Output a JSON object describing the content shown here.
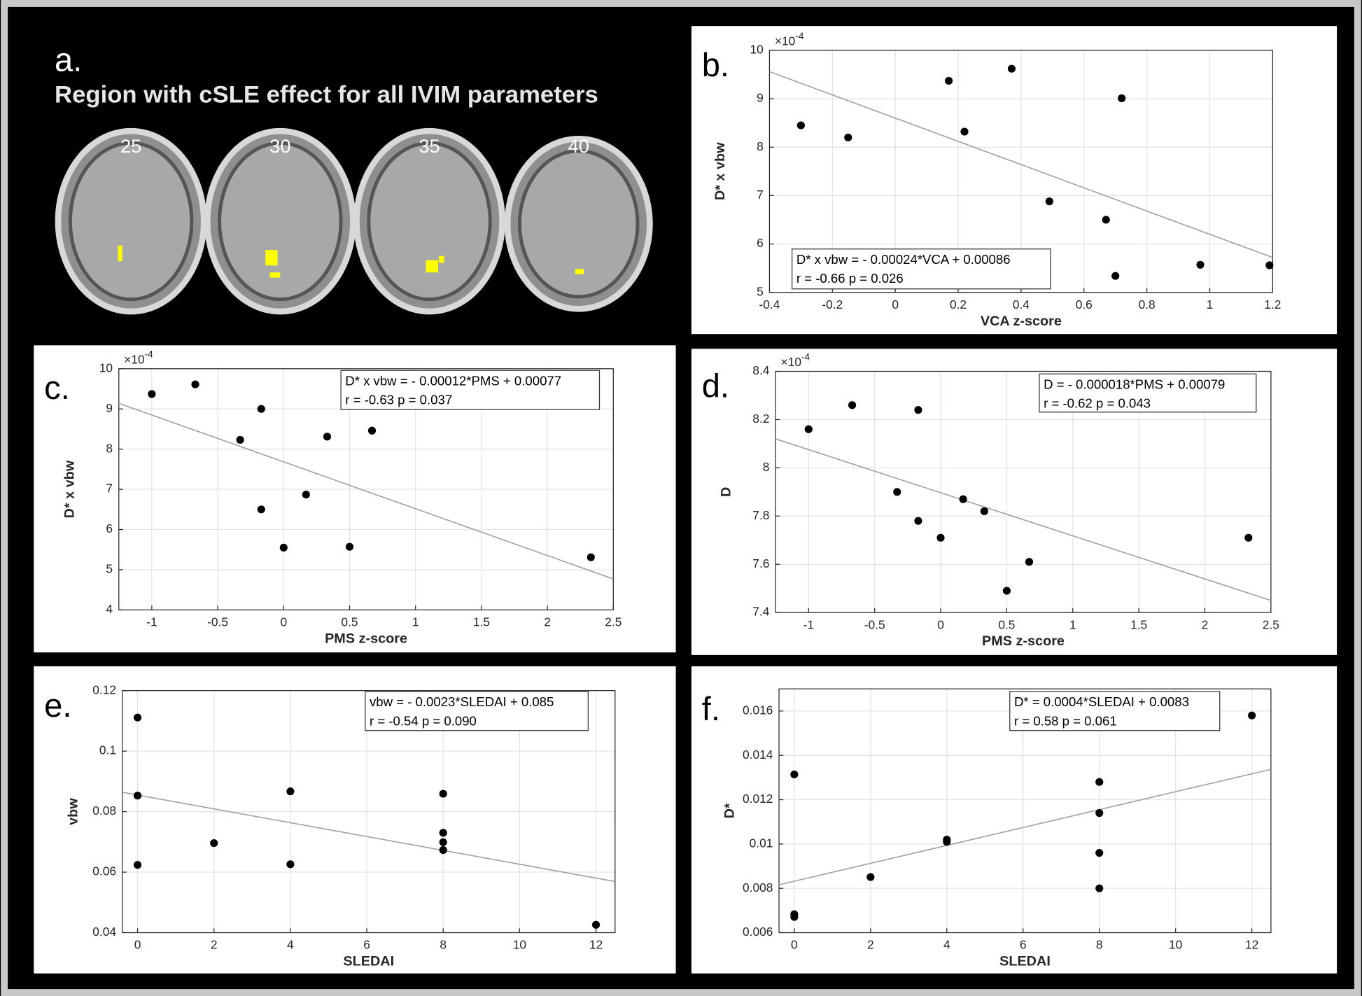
{
  "panel_a": {
    "label": "a.",
    "title": "Region with cSLE effect for all IVIM parameters",
    "slices": [
      "25",
      "30",
      "35",
      "40"
    ]
  },
  "chart_data": [
    {
      "type": "scatter",
      "panel": "b.",
      "x_label": "VCA z-score",
      "y_label": "D* x vbw",
      "exponent": {
        "base": "×10",
        "power": "-4"
      },
      "annotation": [
        "D* x vbw = - 0.00024*VCA + 0.00086",
        "r = -0.66  p = 0.026"
      ],
      "xlim": [
        -0.4,
        1.2
      ],
      "ylim": [
        5,
        10
      ],
      "xticks": [
        -0.4,
        -0.2,
        0,
        0.2,
        0.4,
        0.6,
        0.8,
        1,
        1.2
      ],
      "yticks": [
        5,
        6,
        7,
        8,
        9,
        10
      ],
      "grid": true,
      "color": "#000000",
      "x": [
        -0.3,
        -0.15,
        0.17,
        0.37,
        0.22,
        0.72,
        0.49,
        0.67,
        0.7,
        0.97,
        1.19
      ],
      "values": [
        8.45,
        8.2,
        9.37,
        9.62,
        8.32,
        9.01,
        6.88,
        6.5,
        5.34,
        5.57,
        5.56
      ],
      "fit_line": {
        "x": [
          -0.4,
          1.2
        ],
        "values": [
          9.56,
          5.72
        ],
        "color": "#a0a0a0"
      }
    },
    {
      "type": "scatter",
      "panel": "c.",
      "x_label": "PMS z-score",
      "y_label": "D* x vbw",
      "exponent": {
        "base": "×10",
        "power": "-4"
      },
      "annotation": [
        "D* x vbw = - 0.00012*PMS + 0.00077",
        "r = -0.63  p = 0.037"
      ],
      "xlim": [
        -1.25,
        2.5
      ],
      "ylim": [
        4,
        10
      ],
      "xticks": [
        -1,
        -0.5,
        0,
        0.5,
        1,
        1.5,
        2,
        2.5
      ],
      "yticks": [
        4,
        5,
        6,
        7,
        8,
        9,
        10
      ],
      "grid": true,
      "color": "#000000",
      "x": [
        -1,
        -0.67,
        -0.17,
        -0.33,
        0.33,
        0.67,
        0.17,
        -0.17,
        0,
        0.5,
        2.33
      ],
      "values": [
        9.37,
        9.61,
        9.0,
        8.23,
        8.31,
        8.46,
        6.87,
        6.5,
        5.55,
        5.57,
        5.31
      ],
      "fit_line": {
        "x": [
          -1.25,
          2.5
        ],
        "values": [
          9.14,
          4.77
        ],
        "color": "#a0a0a0"
      }
    },
    {
      "type": "scatter",
      "panel": "d.",
      "x_label": "PMS z-score",
      "y_label": "D",
      "exponent": {
        "base": "×10",
        "power": "-4"
      },
      "annotation": [
        "D = - 0.000018*PMS + 0.00079",
        "r = -0.62  p = 0.043"
      ],
      "xlim": [
        -1.25,
        2.5
      ],
      "ylim": [
        7.4,
        8.4
      ],
      "xticks": [
        -1,
        -0.5,
        0,
        0.5,
        1,
        1.5,
        2,
        2.5
      ],
      "yticks": [
        7.4,
        7.6,
        7.8,
        8,
        8.2,
        8.4
      ],
      "grid": true,
      "color": "#000000",
      "x": [
        -1,
        -0.67,
        -0.17,
        -0.33,
        -0.17,
        0.17,
        0.33,
        0,
        0.5,
        0.67,
        2.33
      ],
      "values": [
        8.16,
        8.26,
        8.24,
        7.9,
        7.78,
        7.87,
        7.82,
        7.71,
        7.49,
        7.61,
        7.71
      ],
      "fit_line": {
        "x": [
          -1.25,
          2.5
        ],
        "values": [
          8.12,
          7.45
        ],
        "color": "#a0a0a0"
      }
    },
    {
      "type": "scatter",
      "panel": "e.",
      "x_label": "SLEDAI",
      "y_label": "vbw",
      "annotation": [
        "vbw = - 0.0023*SLEDAI + 0.085",
        "r = -0.54  p = 0.090"
      ],
      "xlim": [
        -0.4,
        12.5
      ],
      "ylim": [
        0.04,
        0.12
      ],
      "xticks": [
        0,
        2,
        4,
        6,
        8,
        10,
        12
      ],
      "yticks": [
        0.04,
        0.06,
        0.08,
        0.1,
        0.12
      ],
      "grid": true,
      "color": "#000000",
      "x": [
        0,
        0,
        0,
        2,
        4,
        4,
        8,
        8,
        8,
        8,
        12
      ],
      "values": [
        0.1111,
        0.0853,
        0.0624,
        0.0696,
        0.0867,
        0.0626,
        0.0859,
        0.073,
        0.0699,
        0.0673,
        0.0426
      ],
      "fit_line": {
        "x": [
          -0.4,
          12.5
        ],
        "values": [
          0.0864,
          0.0569
        ],
        "color": "#a0a0a0"
      }
    },
    {
      "type": "scatter",
      "panel": "f.",
      "x_label": "SLEDAI",
      "y_label": "D*",
      "annotation": [
        "D* = 0.0004*SLEDAI + 0.0083",
        "r = 0.58  p = 0.061"
      ],
      "xlim": [
        -0.4,
        12.5
      ],
      "ylim": [
        0.006,
        0.017
      ],
      "xticks": [
        0,
        2,
        4,
        6,
        8,
        10,
        12
      ],
      "yticks": [
        0.006,
        0.008,
        0.01,
        0.012,
        0.014,
        0.016
      ],
      "grid": true,
      "color": "#000000",
      "x": [
        0,
        0,
        0,
        2,
        4,
        4,
        8,
        8,
        8,
        8,
        12
      ],
      "values": [
        0.01314,
        0.00683,
        0.00671,
        0.00851,
        0.0102,
        0.0101,
        0.0128,
        0.0114,
        0.0096,
        0.008,
        0.0158
      ],
      "fit_line": {
        "x": [
          -0.4,
          12.5
        ],
        "values": [
          0.00816,
          0.01337
        ],
        "color": "#a0a0a0"
      }
    }
  ]
}
